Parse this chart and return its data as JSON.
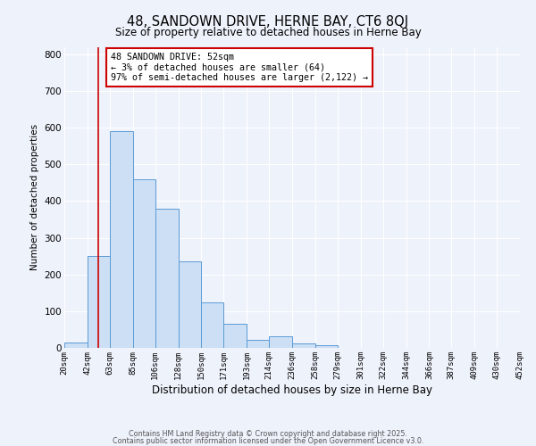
{
  "title": "48, SANDOWN DRIVE, HERNE BAY, CT6 8QJ",
  "subtitle": "Size of property relative to detached houses in Herne Bay",
  "xlabel": "Distribution of detached houses by size in Herne Bay",
  "ylabel": "Number of detached properties",
  "bar_counts": [
    15,
    250,
    590,
    460,
    380,
    235,
    125,
    65,
    22,
    32,
    12,
    8,
    0,
    0,
    0,
    0,
    0,
    0,
    0,
    0,
    0
  ],
  "bin_edges": [
    20,
    42,
    63,
    85,
    106,
    128,
    150,
    171,
    193,
    214,
    236,
    258,
    279,
    301,
    322,
    344,
    366,
    387,
    409,
    430,
    452
  ],
  "tick_labels": [
    "20sqm",
    "42sqm",
    "63sqm",
    "85sqm",
    "106sqm",
    "128sqm",
    "150sqm",
    "171sqm",
    "193sqm",
    "214sqm",
    "236sqm",
    "258sqm",
    "279sqm",
    "301sqm",
    "322sqm",
    "344sqm",
    "366sqm",
    "387sqm",
    "409sqm",
    "430sqm",
    "452sqm"
  ],
  "bar_color": "#ccdff5",
  "bar_edge_color": "#5b9bd5",
  "property_line_x": 52,
  "property_line_color": "#cc0000",
  "ylim": [
    0,
    820
  ],
  "yticks": [
    0,
    100,
    200,
    300,
    400,
    500,
    600,
    700,
    800
  ],
  "annotation_box_text": "48 SANDOWN DRIVE: 52sqm\n← 3% of detached houses are smaller (64)\n97% of semi-detached houses are larger (2,122) →",
  "annotation_box_color": "#cc0000",
  "footnote1": "Contains HM Land Registry data © Crown copyright and database right 2025.",
  "footnote2": "Contains public sector information licensed under the Open Government Licence v3.0.",
  "bg_color": "#eef2fb",
  "grid_color": "#ffffff",
  "fig_bg": "#eef2fb",
  "title_fontsize": 10.5,
  "subtitle_fontsize": 8.5,
  "xlabel_fontsize": 8.5,
  "ylabel_fontsize": 7.5,
  "tick_fontsize": 6.5,
  "ytick_fontsize": 7.5,
  "annot_fontsize": 7.2,
  "footnote_fontsize": 5.8
}
